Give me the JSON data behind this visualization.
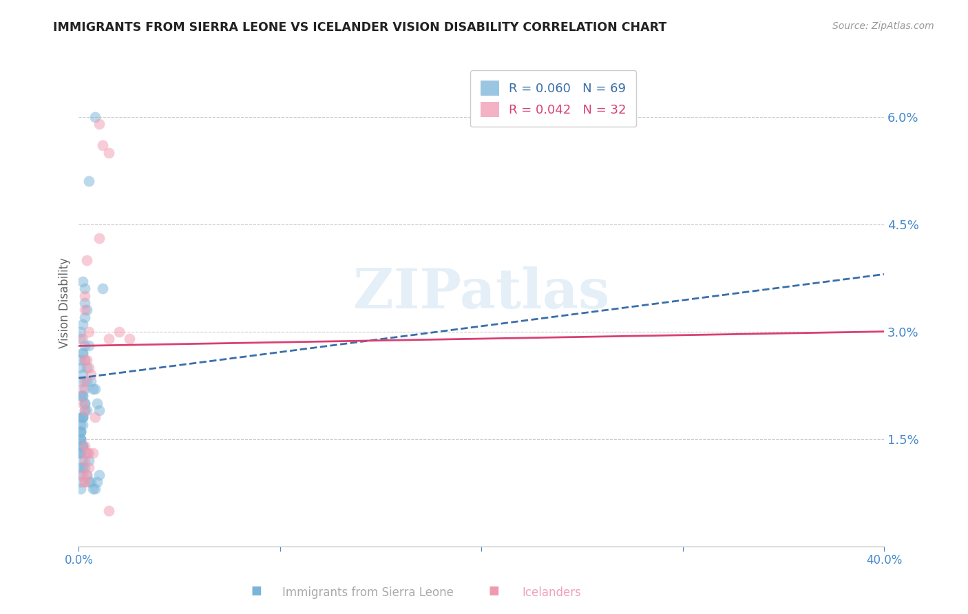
{
  "title": "IMMIGRANTS FROM SIERRA LEONE VS ICELANDER VISION DISABILITY CORRELATION CHART",
  "source": "Source: ZipAtlas.com",
  "ylabel": "Vision Disability",
  "right_yticks": [
    "6.0%",
    "4.5%",
    "3.0%",
    "1.5%"
  ],
  "right_ytick_vals": [
    0.06,
    0.045,
    0.03,
    0.015
  ],
  "xlim": [
    0.0,
    0.4
  ],
  "ylim": [
    0.0,
    0.068
  ],
  "watermark": "ZIPatlas",
  "legend": [
    {
      "label": "R = 0.060   N = 69",
      "color": "#7ab4d8"
    },
    {
      "label": "R = 0.042   N = 32",
      "color": "#f09ab0"
    }
  ],
  "blue_color": "#7ab4d8",
  "pink_color": "#f09ab0",
  "blue_line_color": "#3a6eaa",
  "pink_line_color": "#d94070",
  "grid_color": "#cccccc",
  "title_color": "#222222",
  "right_tick_color": "#4488cc",
  "bottom_tick_color": "#4488cc",
  "legend_text_blue": "#3a6eaa",
  "legend_text_pink": "#d94070",
  "blue_scatter_x": [
    0.008,
    0.005,
    0.012,
    0.003,
    0.002,
    0.003,
    0.004,
    0.003,
    0.002,
    0.001,
    0.001,
    0.003,
    0.002,
    0.001,
    0.001,
    0.002,
    0.001,
    0.004,
    0.003,
    0.002,
    0.002,
    0.003,
    0.003,
    0.004,
    0.001,
    0.002,
    0.001,
    0.002,
    0.001,
    0.001,
    0.001,
    0.001,
    0.002,
    0.002,
    0.001,
    0.001,
    0.002,
    0.001,
    0.003,
    0.004,
    0.005,
    0.006,
    0.007,
    0.008,
    0.009,
    0.01,
    0.002,
    0.003,
    0.004,
    0.005,
    0.006,
    0.007,
    0.001,
    0.009,
    0.01,
    0.002,
    0.001,
    0.001,
    0.002,
    0.001,
    0.004,
    0.005,
    0.003,
    0.002,
    0.008,
    0.001,
    0.001,
    0.001,
    0.002
  ],
  "blue_scatter_y": [
    0.06,
    0.051,
    0.036,
    0.036,
    0.037,
    0.034,
    0.033,
    0.032,
    0.031,
    0.03,
    0.029,
    0.028,
    0.027,
    0.026,
    0.025,
    0.024,
    0.023,
    0.023,
    0.022,
    0.021,
    0.021,
    0.02,
    0.02,
    0.019,
    0.018,
    0.018,
    0.017,
    0.017,
    0.016,
    0.016,
    0.015,
    0.015,
    0.014,
    0.014,
    0.013,
    0.013,
    0.012,
    0.011,
    0.011,
    0.01,
    0.009,
    0.009,
    0.008,
    0.008,
    0.009,
    0.01,
    0.027,
    0.026,
    0.025,
    0.028,
    0.023,
    0.022,
    0.021,
    0.02,
    0.019,
    0.018,
    0.016,
    0.015,
    0.014,
    0.013,
    0.013,
    0.012,
    0.019,
    0.018,
    0.022,
    0.01,
    0.009,
    0.008,
    0.011
  ],
  "pink_scatter_x": [
    0.01,
    0.012,
    0.015,
    0.01,
    0.004,
    0.003,
    0.003,
    0.005,
    0.002,
    0.003,
    0.004,
    0.005,
    0.006,
    0.003,
    0.002,
    0.002,
    0.003,
    0.008,
    0.02,
    0.025,
    0.003,
    0.004,
    0.005,
    0.003,
    0.005,
    0.002,
    0.004,
    0.003,
    0.003,
    0.015,
    0.007,
    0.015
  ],
  "pink_scatter_y": [
    0.059,
    0.056,
    0.055,
    0.043,
    0.04,
    0.035,
    0.033,
    0.03,
    0.029,
    0.026,
    0.026,
    0.025,
    0.024,
    0.023,
    0.022,
    0.02,
    0.019,
    0.018,
    0.03,
    0.029,
    0.014,
    0.013,
    0.013,
    0.012,
    0.011,
    0.01,
    0.01,
    0.009,
    0.009,
    0.029,
    0.013,
    0.005
  ],
  "blue_trend_x": [
    0.0,
    0.4
  ],
  "blue_trend_y": [
    0.0235,
    0.038
  ],
  "pink_trend_x": [
    0.0,
    0.4
  ],
  "pink_trend_y": [
    0.028,
    0.03
  ]
}
